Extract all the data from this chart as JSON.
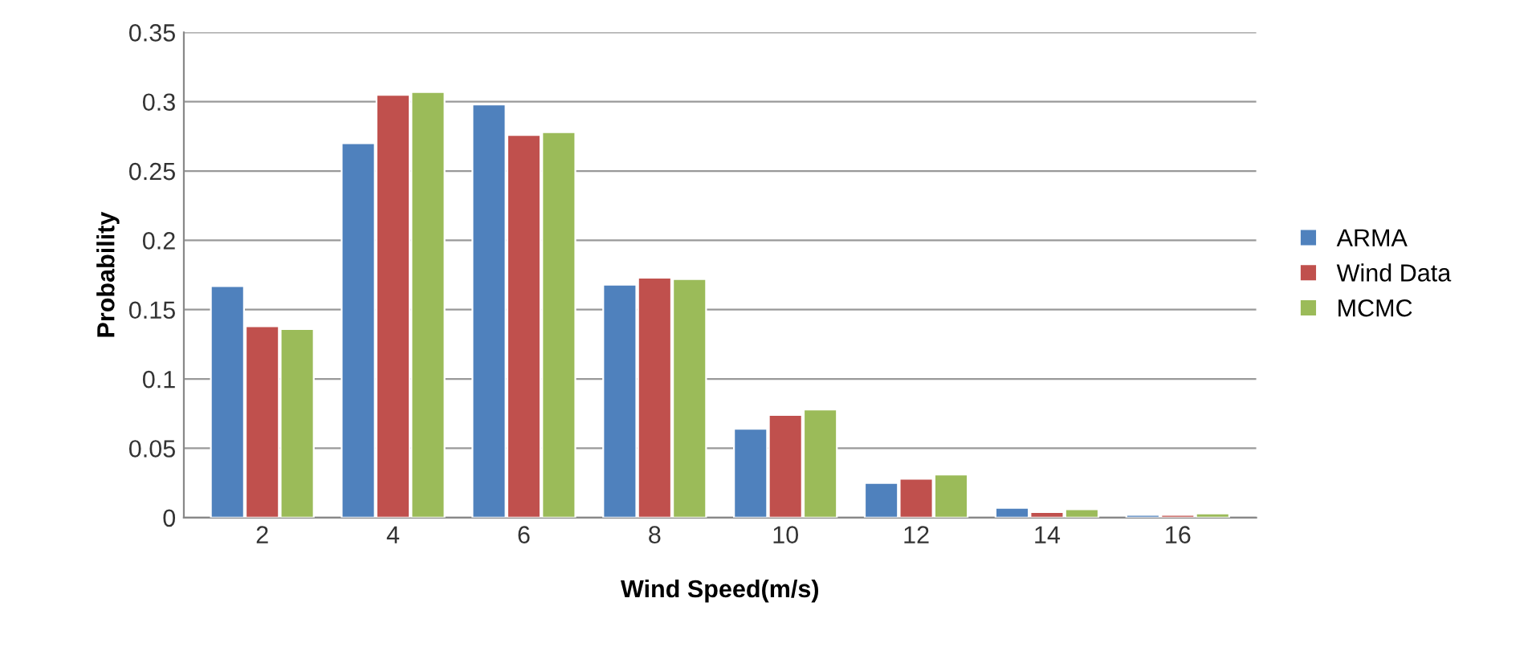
{
  "chart_data": {
    "type": "bar",
    "xlabel": "Wind Speed(m/s)",
    "ylabel": "Probability",
    "categories": [
      "2",
      "4",
      "6",
      "8",
      "10",
      "12",
      "14",
      "16"
    ],
    "series": [
      {
        "name": "ARMA",
        "color": "#4f81bd",
        "values": [
          0.167,
          0.27,
          0.298,
          0.168,
          0.064,
          0.025,
          0.007,
          0.002
        ]
      },
      {
        "name": "Wind Data",
        "color": "#c0504d",
        "values": [
          0.138,
          0.305,
          0.276,
          0.173,
          0.074,
          0.028,
          0.004,
          0.002
        ]
      },
      {
        "name": "MCMC",
        "color": "#9bbb59",
        "values": [
          0.136,
          0.307,
          0.278,
          0.172,
          0.078,
          0.031,
          0.006,
          0.003
        ]
      }
    ],
    "ylim": [
      0,
      0.35
    ],
    "yticks": [
      0,
      0.05,
      0.1,
      0.15,
      0.2,
      0.25,
      0.3,
      0.35
    ],
    "grid": "y",
    "legend": "right"
  }
}
